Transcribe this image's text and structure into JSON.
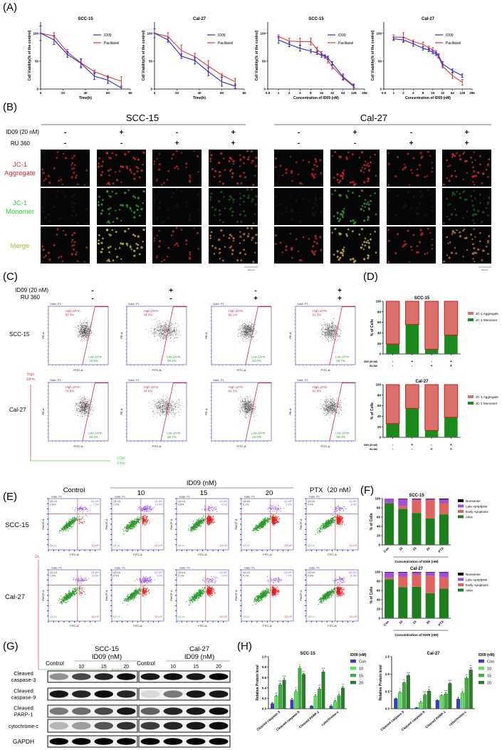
{
  "panels": {
    "A": "(A)",
    "B": "(B)",
    "C": "(C)",
    "D": "(D)",
    "E": "(E)",
    "F": "(F)",
    "G": "(G)",
    "H": "(H)"
  },
  "colors": {
    "id09": "#2b2bc8",
    "paclitaxel": "#d83a3a",
    "monomer": "#1a8a1a",
    "aggregate": "#d9706c",
    "alive": "#1e7e1e",
    "early": "#e0645e",
    "late": "#a050d8",
    "nonsense": "#000000",
    "con": "#3a3ad0",
    "c10": "#5fe05f",
    "c15": "#3fae3f",
    "c20": "#2a7e2a"
  },
  "panel_b": {
    "groups": [
      "SCC-15",
      "Cal-27"
    ],
    "treatment_labels": [
      "ID09 (20 nM)",
      "RU 360"
    ],
    "conditions": [
      {
        "id09": "-",
        "ru360": "-"
      },
      {
        "id09": "+",
        "ru360": "-"
      },
      {
        "id09": "-",
        "ru360": "+"
      },
      {
        "id09": "+",
        "ru360": "+"
      }
    ],
    "rows": [
      {
        "label1": "JC-1",
        "label2": "Aggregate",
        "color": "#e02828"
      },
      {
        "label1": "JC-1",
        "label2": "Monomer",
        "color": "#28d028"
      },
      {
        "label1": "Merge",
        "label2": "",
        "color": "#a8c040"
      }
    ],
    "scale_bar": "200 μm"
  },
  "panel_c": {
    "treatment_labels": [
      "ID09 (20 nM)",
      "RU 360"
    ],
    "conditions": [
      {
        "id09": "-",
        "ru360": "-"
      },
      {
        "id09": "+",
        "ru360": "-"
      },
      {
        "id09": "-",
        "ru360": "+"
      },
      {
        "id09": "+",
        "ru360": "+"
      }
    ],
    "rows": [
      "SCC-15",
      "Cal-27"
    ],
    "gate": "Gate: P1",
    "high_label": "High ΔΨm",
    "low_label": "Low ΔΨm",
    "x_axis": "FITC-A",
    "y_axis": "PE-A",
    "axis_high": [
      "High",
      "ΔΨm"
    ],
    "axis_low": [
      "LOW",
      "ΔΨm"
    ],
    "values": [
      [
        {
          "high": "80.4%",
          "low": "19.6%"
        },
        {
          "high": "44.5%",
          "low": "55.5%"
        },
        {
          "high": "90.1%",
          "low": "10.0%"
        },
        {
          "high": "61.3%",
          "low": "38.7%"
        }
      ],
      [
        {
          "high": "74.9%",
          "low": "25.2%"
        },
        {
          "high": "44.6%",
          "low": "55.7%"
        },
        {
          "high": "84.5%",
          "low": "15.5%"
        },
        {
          "high": "60.6%",
          "low": "39.4%"
        }
      ]
    ]
  },
  "panel_e": {
    "column_headers": [
      "Control",
      "10",
      "15",
      "20",
      "PTX（20 nM）"
    ],
    "group_header": "ID09 (nM)",
    "rows": [
      "SCC-15",
      "Cal-27"
    ],
    "gate": "Gate: P1",
    "x_axis": "FITC-A",
    "y_axis": "PerCP-A",
    "axis_pi": "PI",
    "axis_annexin": "Annexin-V",
    "plots": [
      [
        {
          "q": "Q1",
          "ul": "1.6%",
          "ur": "7.2%"
        },
        {
          "q": "Q1",
          "ul": "1.2%",
          "ur": "14.3%"
        },
        {
          "q": "Q2",
          "ul": "0.8%",
          "ur": "4.1%"
        },
        {
          "q": "Q2",
          "ul": "0.1%",
          "ur": "2.1%"
        },
        {
          "q": "Q2",
          "ul": "0.0%",
          "ur": "8.3%"
        }
      ],
      [
        {
          "q": "Q1",
          "ul": "1.5%",
          "ur": "10.6%"
        },
        {
          "q": "Q2",
          "ul": "0.5%",
          "ur": "9.2%"
        },
        {
          "q": "Q2",
          "ul": "0.1%",
          "ur": "7.1%"
        },
        {
          "q": "Q2",
          "ul": "0.1%",
          "ur": "7.7%"
        },
        {
          "q": "Q2",
          "ul": "0.0%",
          "ur": "11.0%"
        }
      ]
    ]
  },
  "panel_g": {
    "groups": [
      {
        "cell": "SCC-15",
        "unit": "ID09 (nM)"
      },
      {
        "cell": "Cal-27",
        "unit": "ID09 (nM)"
      }
    ],
    "lanes": [
      "Control",
      "10",
      "15",
      "20"
    ],
    "proteins": [
      {
        "l1": "Cleaved",
        "l2": "caspase-3"
      },
      {
        "l1": "Cleaved",
        "l2": "caspase-9"
      },
      {
        "l1": "Cleaved",
        "l2": "PARP-1"
      },
      {
        "l1": "cytochrome-c",
        "l2": ""
      },
      {
        "l1": "GAPDH",
        "l2": ""
      }
    ],
    "band_intensity": [
      [
        [
          0.4,
          0.7,
          0.85,
          0.95
        ],
        [
          0.9,
          0.85,
          0.95,
          0.85
        ],
        [
          0.5,
          0.55,
          0.7,
          0.9
        ],
        [
          0.25,
          0.35,
          0.65,
          0.8
        ],
        [
          1,
          1,
          1,
          1
        ]
      ],
      [
        [
          0.9,
          0.95,
          0.9,
          1
        ],
        [
          0.1,
          0.5,
          0.9,
          0.9
        ],
        [
          0.6,
          0.85,
          0.9,
          0.95
        ],
        [
          0.75,
          0.85,
          0.9,
          0.95
        ],
        [
          1,
          1,
          1,
          1
        ]
      ]
    ]
  },
  "chart_data": [
    {
      "id": "A1",
      "type": "line",
      "title": "SCC-15",
      "xlabel": "Time(h)",
      "ylabel": "Cell Viability(% of the control)",
      "xscale": "linear",
      "xlim": [
        0,
        80
      ],
      "xticks": [
        0,
        20,
        40,
        60,
        80
      ],
      "ylim": [
        0,
        120
      ],
      "yticks": [
        0,
        50,
        100
      ],
      "legend": "top-right",
      "x": [
        0,
        12,
        24,
        36,
        48,
        60,
        72
      ],
      "series": [
        {
          "name": "ID09",
          "color": "#2b2bc8",
          "values": [
            100,
            88,
            62,
            46,
            23,
            16,
            2
          ],
          "errors": [
            13,
            8,
            5,
            8,
            6,
            6,
            2
          ]
        },
        {
          "name": "Paclitaxel",
          "color": "#d83a3a",
          "values": [
            100,
            95,
            66,
            47,
            31,
            22,
            14
          ],
          "errors": [
            0,
            6,
            5,
            7,
            3,
            2,
            8
          ]
        }
      ]
    },
    {
      "id": "A2",
      "type": "line",
      "title": "Cal-27",
      "xlabel": "Time(h)",
      "ylabel": "Cell Viability(% of the control)",
      "xscale": "linear",
      "xlim": [
        0,
        80
      ],
      "xticks": [
        0,
        20,
        40,
        60,
        80
      ],
      "ylim": [
        0,
        120
      ],
      "yticks": [
        0,
        50,
        100
      ],
      "legend": "top-right",
      "x": [
        0,
        12,
        24,
        36,
        48,
        60,
        72
      ],
      "series": [
        {
          "name": "ID09",
          "color": "#2b2bc8",
          "values": [
            100,
            88,
            59,
            51,
            31,
            13,
            5
          ],
          "errors": [
            8,
            4,
            4,
            6,
            7,
            8,
            4
          ]
        },
        {
          "name": "Paclitaxel",
          "color": "#d83a3a",
          "values": [
            100,
            94,
            69,
            58,
            41,
            25,
            13
          ],
          "errors": [
            0,
            7,
            10,
            6,
            10,
            2,
            6
          ]
        }
      ]
    },
    {
      "id": "A3",
      "type": "line",
      "title": "SCC-15",
      "xlabel": "Concentration of ID09 (nM)",
      "ylabel": "Cell Viability(% of the control)",
      "xscale": "log2",
      "xlim": [
        0.5,
        256
      ],
      "xticks": [
        0.5,
        1,
        2,
        4,
        8,
        16,
        32,
        64,
        128,
        256
      ],
      "ylim": [
        0,
        120
      ],
      "yticks": [
        0,
        50,
        100
      ],
      "legend": "top-right",
      "x": [
        1,
        2,
        4,
        8,
        12,
        16,
        20,
        24,
        32,
        64,
        128
      ],
      "series": [
        {
          "name": "ID09",
          "color": "#2b2bc8",
          "values": [
            88,
            80,
            73,
            68,
            65,
            60,
            59,
            56,
            46,
            22,
            6
          ],
          "errors": [
            6,
            4,
            5,
            3,
            3,
            3,
            2,
            3,
            3,
            5,
            3
          ]
        },
        {
          "name": "Paclitaxel",
          "color": "#d83a3a",
          "values": [
            94,
            86,
            85,
            85,
            71,
            64,
            58,
            52,
            40,
            20,
            4
          ],
          "errors": [
            3,
            5,
            6,
            6,
            4,
            3,
            3,
            5,
            4,
            4,
            3
          ]
        }
      ]
    },
    {
      "id": "A4",
      "type": "line",
      "title": "Cal-27",
      "xlabel": "Concentration of ID09 (nM)",
      "ylabel": "Cell Viability(% of the control)",
      "xscale": "log2",
      "xlim": [
        0.5,
        256
      ],
      "xticks": [
        0.5,
        1,
        2,
        4,
        8,
        16,
        32,
        64,
        128,
        256
      ],
      "ylim": [
        0,
        120
      ],
      "yticks": [
        0,
        50,
        100
      ],
      "legend": "top-right",
      "x": [
        1,
        2,
        4,
        8,
        12,
        16,
        20,
        24,
        32,
        64,
        128
      ],
      "series": [
        {
          "name": "ID09",
          "color": "#2b2bc8",
          "values": [
            90,
            88,
            81,
            73,
            70,
            66,
            63,
            60,
            45,
            33,
            24
          ],
          "errors": [
            3,
            4,
            4,
            3,
            3,
            3,
            3,
            3,
            4,
            3,
            3
          ]
        },
        {
          "name": "Paclitaxel",
          "color": "#d83a3a",
          "values": [
            93,
            93,
            85,
            80,
            74,
            70,
            66,
            58,
            41,
            24,
            12
          ],
          "errors": [
            4,
            8,
            3,
            4,
            3,
            4,
            3,
            3,
            3,
            5,
            5
          ]
        }
      ]
    },
    {
      "id": "D1",
      "type": "bar",
      "stacked": true,
      "title": "SCC-15",
      "ylabel": "% of Cells",
      "ylim": [
        0,
        100
      ],
      "yticks": [
        0,
        20,
        40,
        60,
        80,
        100
      ],
      "legend": "right",
      "condition_labels": [
        "ID09 (20 nM)",
        "RU 360"
      ],
      "conditions": [
        [
          "-",
          "-"
        ],
        [
          "+",
          "-"
        ],
        [
          "-",
          "+"
        ],
        [
          "+",
          "+"
        ]
      ],
      "series": [
        {
          "name": "JC-1 Monomer",
          "color": "#1a8a1a",
          "values": [
            19,
            56,
            9,
            36
          ]
        },
        {
          "name": "JC-1 Aggregate",
          "color": "#d9706c",
          "values": [
            81,
            44,
            91,
            64
          ]
        }
      ]
    },
    {
      "id": "D2",
      "type": "bar",
      "stacked": true,
      "title": "Cal-27",
      "ylabel": "% of Cells",
      "ylim": [
        0,
        100
      ],
      "yticks": [
        0,
        20,
        40,
        60,
        80,
        100
      ],
      "legend": "right",
      "condition_labels": [
        "ID09 (20 nM)",
        "RU 360"
      ],
      "conditions": [
        [
          "-",
          "-"
        ],
        [
          "+",
          "-"
        ],
        [
          "-",
          "+"
        ],
        [
          "+",
          "+"
        ]
      ],
      "series": [
        {
          "name": "JC-1 Monomer",
          "color": "#1a8a1a",
          "values": [
            26,
            55,
            13,
            38
          ]
        },
        {
          "name": "JC-1 Aggregate",
          "color": "#d9706c",
          "values": [
            74,
            45,
            87,
            62
          ]
        }
      ]
    },
    {
      "id": "F1",
      "type": "bar",
      "stacked": true,
      "title": "SCC-15",
      "xlabel": "Concentration of ID09 (nM)",
      "ylabel": "% of Cells",
      "ylim": [
        0,
        100
      ],
      "yticks": [
        0,
        20,
        40,
        60,
        80,
        100
      ],
      "legend": "right",
      "categories": [
        "Con",
        "10",
        "15",
        "20",
        "PTX"
      ],
      "series": [
        {
          "name": "Alive",
          "color": "#1e7e1e",
          "values": [
            90,
            78,
            69,
            57,
            66
          ]
        },
        {
          "name": "Early Apoptosis",
          "color": "#e0645e",
          "values": [
            1,
            6,
            27,
            39,
            24
          ]
        },
        {
          "name": "Late Apoptpsis",
          "color": "#a050d8",
          "values": [
            9,
            15,
            3,
            3,
            8
          ]
        },
        {
          "name": "Nonsense",
          "color": "#000000",
          "values": [
            0,
            1,
            1,
            1,
            2
          ]
        }
      ]
    },
    {
      "id": "F2",
      "type": "bar",
      "stacked": true,
      "title": "Cal-27",
      "xlabel": "Concentration of ID09 (nM)",
      "ylabel": "% of Cells",
      "ylim": [
        0,
        100
      ],
      "yticks": [
        0,
        20,
        40,
        60,
        80,
        100
      ],
      "legend": "right",
      "categories": [
        "Con",
        "10",
        "15",
        "20",
        "PTX"
      ],
      "series": [
        {
          "name": "Alive",
          "color": "#1e7e1e",
          "values": [
            84,
            67,
            68,
            54,
            64
          ]
        },
        {
          "name": "Early Apoptosis",
          "color": "#e0645e",
          "values": [
            4,
            23,
            26,
            38,
            24
          ]
        },
        {
          "name": "Late Apoptpsis",
          "color": "#a050d8",
          "values": [
            11,
            9,
            5,
            7,
            11
          ]
        },
        {
          "name": "Nonsense",
          "color": "#000000",
          "values": [
            1,
            1,
            1,
            1,
            1
          ]
        }
      ]
    },
    {
      "id": "H1",
      "type": "bar",
      "stacked": false,
      "title": "SCC-15",
      "ylabel": "Relative Protein level",
      "ylim": [
        0,
        1.0
      ],
      "yticks": [
        0.0,
        0.2,
        0.4,
        0.6,
        0.8,
        1.0
      ],
      "legend": "right",
      "legend_title": "ID09 (nM)",
      "categories": [
        "Cleaved caspase-3",
        "Cleaved caspase-9",
        "Cleaved PARP-1",
        "cytochrome-c"
      ],
      "series": [
        {
          "name": "Con",
          "color": "#3a3ad0",
          "values": [
            0.1,
            0.17,
            0.05,
            0.05
          ],
          "errors": [
            0.02,
            0.03,
            0.01,
            0.02
          ],
          "stars": [
            "",
            "",
            "",
            ""
          ]
        },
        {
          "name": "10",
          "color": "#5fe05f",
          "values": [
            0.24,
            0.33,
            0.24,
            0.14
          ],
          "errors": [
            0.02,
            0.03,
            0.03,
            0.02
          ],
          "stars": [
            "**",
            "*",
            "*",
            "*"
          ]
        },
        {
          "name": "15",
          "color": "#3fae3f",
          "values": [
            0.46,
            0.78,
            0.38,
            0.25
          ],
          "errors": [
            0.03,
            0.03,
            0.03,
            0.03
          ],
          "stars": [
            "***",
            "*",
            "**",
            "*"
          ]
        },
        {
          "name": "20",
          "color": "#2a7e2a",
          "values": [
            0.55,
            0.66,
            0.71,
            0.4
          ],
          "errors": [
            0.04,
            0.02,
            0.03,
            0.03
          ],
          "stars": [
            "***",
            "**",
            "***",
            "**"
          ]
        }
      ]
    },
    {
      "id": "H2",
      "type": "bar",
      "stacked": false,
      "title": "Cal-27",
      "ylabel": "Relative Protein level",
      "ylim": [
        0,
        1.5
      ],
      "yticks": [
        0.0,
        0.5,
        1.0,
        1.5
      ],
      "legend": "right",
      "legend_title": "ID09 (nM)",
      "categories": [
        "Cleaved caspase-3",
        "Cleaved caspase-9",
        "Cleaved PARP-1",
        "cytochrome-c"
      ],
      "series": [
        {
          "name": "Con",
          "color": "#3a3ad0",
          "values": [
            0.29,
            0.03,
            0.24,
            0.28
          ],
          "errors": [
            0.02,
            0.01,
            0.02,
            0.05
          ],
          "stars": [
            "",
            "",
            "",
            ""
          ]
        },
        {
          "name": "10",
          "color": "#5fe05f",
          "values": [
            0.47,
            0.18,
            0.38,
            0.46
          ],
          "errors": [
            0.03,
            0.04,
            0.02,
            0.04
          ],
          "stars": [
            "*",
            "*",
            "*",
            "*"
          ]
        },
        {
          "name": "15",
          "color": "#3fae3f",
          "values": [
            0.75,
            0.4,
            0.43,
            0.88
          ],
          "errors": [
            0.02,
            0.03,
            0.03,
            0.04
          ],
          "stars": [
            "**",
            "****",
            "***",
            "**"
          ]
        },
        {
          "name": "20",
          "color": "#2a7e2a",
          "values": [
            0.96,
            0.51,
            0.73,
            1.12
          ],
          "errors": [
            0.03,
            0.05,
            0.03,
            0.06
          ],
          "stars": [
            "***",
            "**",
            "***",
            "**"
          ]
        }
      ]
    }
  ]
}
